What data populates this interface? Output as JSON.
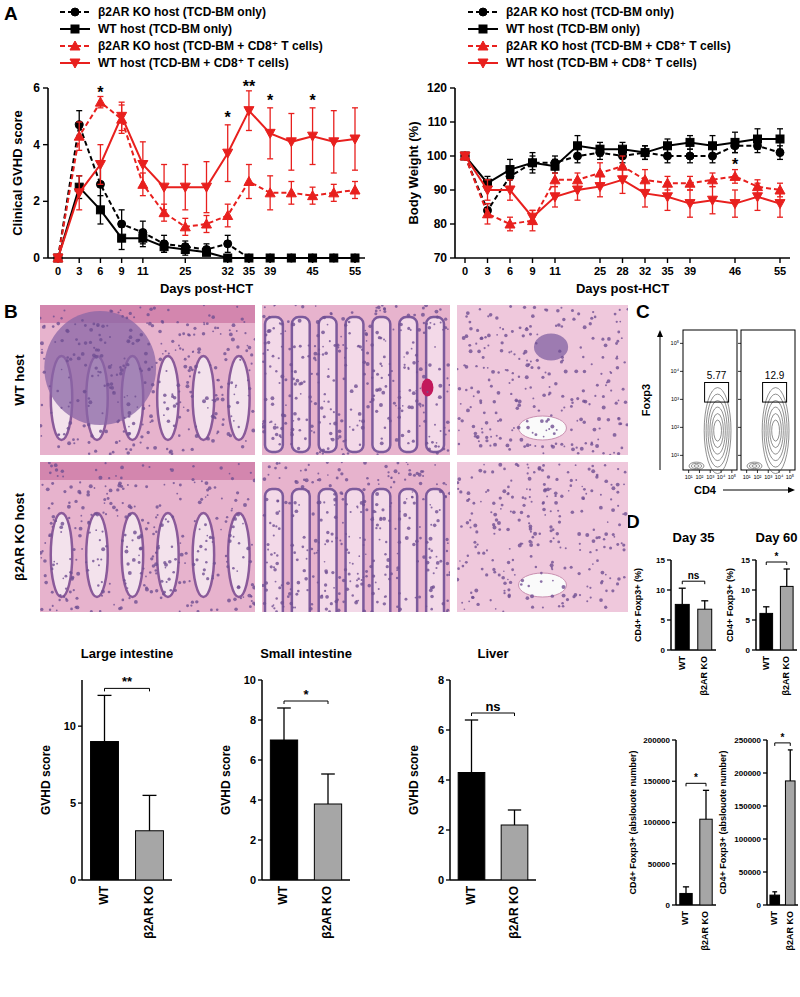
{
  "panel_labels": [
    "A",
    "B",
    "C",
    "D"
  ],
  "histology": {
    "row_labels": [
      "WT host",
      "β2AR KO host"
    ]
  },
  "chart_data": [
    {
      "type": "line",
      "ylabel": "Clinical GVHD score",
      "xlabel": "Days post-HCT",
      "x": [
        "0",
        "3",
        "6",
        "9",
        "11",
        null,
        "25",
        null,
        "32",
        "35",
        "39",
        null,
        "45",
        null,
        "55"
      ],
      "ylim": [
        0,
        6
      ],
      "yticks": [
        0,
        2,
        4,
        6
      ],
      "legend": "top-left",
      "series": [
        {
          "name": "β2AR KO host (TCD-BM only)",
          "color": "#000000",
          "line_style": "dashed",
          "marker": "circle",
          "values": [
            0,
            4.7,
            2.6,
            1.2,
            0.9,
            0.5,
            0.4,
            0.3,
            0.5,
            0,
            0,
            0,
            0,
            0,
            0
          ],
          "errors": [
            0,
            0.5,
            0.8,
            0.5,
            0.4,
            0.3,
            0.2,
            0.2,
            0.3,
            0,
            0,
            0,
            0,
            0,
            0
          ]
        },
        {
          "name": "WT host (TCD-BM only)",
          "color": "#000000",
          "line_style": "solid",
          "marker": "square",
          "values": [
            0,
            2.5,
            1.7,
            0.7,
            0.7,
            0.4,
            0.3,
            0.2,
            0,
            0,
            0,
            0,
            0,
            0,
            0
          ],
          "errors": [
            0,
            0.4,
            0.5,
            0.4,
            0.3,
            0.2,
            0.2,
            0.1,
            0,
            0,
            0,
            0,
            0,
            0,
            0
          ]
        },
        {
          "name": "β2AR KO host (TCD-BM + CD8⁺ T cells)",
          "color": "#e8201e",
          "line_style": "dashed",
          "marker": "triangle",
          "values": [
            0,
            4.3,
            5.5,
            4.9,
            2.6,
            1.6,
            1.1,
            1.2,
            1.5,
            2.7,
            2.3,
            2.3,
            2.2,
            2.3,
            2.4
          ],
          "errors": [
            0,
            0.5,
            0.2,
            0.5,
            0.4,
            0.3,
            0.3,
            0.3,
            0.4,
            0.6,
            0.6,
            0.4,
            0.3,
            0.3,
            0.3
          ]
        },
        {
          "name": "WT host (TCD-BM + CD8⁺ T cells)",
          "color": "#e8201e",
          "line_style": "solid",
          "marker": "triangle-down",
          "values": [
            0,
            2.3,
            3.3,
            5.0,
            3.3,
            2.5,
            2.5,
            2.5,
            3.7,
            5.2,
            4.4,
            4.1,
            4.3,
            4.1,
            4.2
          ],
          "errors": [
            0,
            0.6,
            0.7,
            0.5,
            0.8,
            0.8,
            0.8,
            0.9,
            1.0,
            0.7,
            0.9,
            1.0,
            1.0,
            1.1,
            1.1
          ]
        }
      ],
      "annotations": [
        {
          "text": "*",
          "category": "6",
          "y": 5.8
        },
        {
          "text": "*",
          "category": "32",
          "y": 4.9
        },
        {
          "text": "**",
          "category": "35",
          "y": 6.0
        },
        {
          "text": "*",
          "category": "39",
          "y": 5.5
        },
        {
          "text": "*",
          "category": "45",
          "y": 5.5
        }
      ]
    },
    {
      "type": "line",
      "ylabel": "Body Weight (%)",
      "xlabel": "Days post-HCT",
      "x": [
        "0",
        "3",
        "6",
        "9",
        "11",
        null,
        "25",
        "28",
        "32",
        "35",
        "39",
        null,
        "46",
        null,
        "55"
      ],
      "ylim": [
        70,
        120
      ],
      "yticks": [
        70,
        80,
        90,
        100,
        110,
        120
      ],
      "legend": "top-left",
      "series": [
        {
          "name": "β2AR KO host (TCD-BM only)",
          "color": "#000000",
          "line_style": "dashed",
          "marker": "circle",
          "values": [
            100,
            84,
            94,
            98,
            98,
            100,
            101,
            100,
            101,
            100,
            100,
            100,
            103,
            103,
            101
          ],
          "errors": [
            0,
            2,
            3,
            2,
            2,
            2,
            2,
            2,
            2,
            2,
            2,
            2,
            2,
            2,
            2
          ]
        },
        {
          "name": "WT host (TCD-BM only)",
          "color": "#000000",
          "line_style": "solid",
          "marker": "square",
          "values": [
            100,
            92,
            96,
            98,
            97,
            103,
            102,
            102,
            101,
            103,
            104,
            103,
            104,
            105,
            105
          ],
          "errors": [
            0,
            2,
            3,
            3,
            2,
            3,
            2,
            2,
            2,
            2,
            2,
            3,
            3,
            3,
            3
          ]
        },
        {
          "name": "β2AR KO host (TCD-BM + CD8⁺ T cells)",
          "color": "#e8201e",
          "line_style": "dashed",
          "marker": "triangle",
          "values": [
            100,
            83,
            80,
            81,
            93,
            93,
            95,
            97,
            93,
            92,
            92,
            93,
            94,
            91,
            90
          ],
          "errors": [
            0,
            3,
            2,
            3,
            2,
            2,
            3,
            3,
            3,
            2,
            2,
            2,
            2,
            2,
            2
          ]
        },
        {
          "name": "WT host (TCD-BM + CD8⁺ T cells)",
          "color": "#e8201e",
          "line_style": "solid",
          "marker": "triangle-down",
          "values": [
            100,
            90,
            90,
            82,
            88,
            90,
            91,
            93,
            89,
            88,
            86,
            87,
            86,
            88,
            86
          ],
          "errors": [
            0,
            3,
            3,
            2,
            3,
            3,
            3,
            4,
            4,
            4,
            4,
            4,
            4,
            4,
            4
          ]
        }
      ],
      "annotations": [
        {
          "text": "*",
          "category": "46",
          "y": 97
        }
      ]
    },
    {
      "type": "bar",
      "title": "Large intestine",
      "ylabel": "GVHD score",
      "categories": [
        "WT",
        "β2AR KO"
      ],
      "values": [
        9,
        3.2
      ],
      "errors": [
        3,
        2.3
      ],
      "colors": [
        "#000000",
        "#a6a6a6"
      ],
      "ylim": [
        0,
        13
      ],
      "yticks": [
        0,
        5,
        10
      ],
      "annotations": [
        {
          "text": "**"
        }
      ]
    },
    {
      "type": "bar",
      "title": "Small intestine",
      "ylabel": "GVHD score",
      "categories": [
        "WT",
        "β2AR KO"
      ],
      "values": [
        7,
        3.8
      ],
      "errors": [
        1.6,
        1.5
      ],
      "colors": [
        "#000000",
        "#a6a6a6"
      ],
      "ylim": [
        0,
        10
      ],
      "yticks": [
        0,
        2,
        4,
        6,
        8,
        10
      ],
      "annotations": [
        {
          "text": "*"
        }
      ]
    },
    {
      "type": "bar",
      "title": "Liver",
      "ylabel": "GVHD score",
      "categories": [
        "WT",
        "β2AR KO"
      ],
      "values": [
        4.3,
        2.2
      ],
      "errors": [
        2.1,
        0.6
      ],
      "colors": [
        "#000000",
        "#a6a6a6"
      ],
      "ylim": [
        0,
        8
      ],
      "yticks": [
        0,
        2,
        4,
        6,
        8
      ],
      "annotations": [
        {
          "text": "ns"
        }
      ]
    },
    {
      "type": "contour",
      "xlabel": "CD4",
      "ylabel": "Foxp3",
      "log": true,
      "xlim": [
        3,
        300000
      ],
      "ylim": [
        3,
        300000
      ],
      "xticks": [
        {
          "value": 10,
          "label": "10¹"
        },
        {
          "value": 100,
          "label": "10²"
        },
        {
          "value": 1000,
          "label": "10³"
        },
        {
          "value": 10000,
          "label": "10⁴"
        },
        {
          "value": 100000,
          "label": "10⁵"
        }
      ],
      "yticks": [
        {
          "value": 10,
          "label": "10¹"
        },
        {
          "value": 100,
          "label": "10²"
        },
        {
          "value": 1000,
          "label": "10³"
        },
        {
          "value": 10000,
          "label": "10⁴"
        },
        {
          "value": 100000,
          "label": "10⁵"
        }
      ],
      "gates": [
        {
          "value": 5.77,
          "x": [
            300,
            50000
          ],
          "y": [
            800,
            4000
          ]
        },
        {
          "value": 12.9,
          "x": [
            300,
            50000
          ],
          "y": [
            800,
            4000
          ]
        }
      ]
    },
    {
      "type": "bar",
      "title": "Day 35",
      "ylabel": "CD4+ Foxp3+ (%)",
      "categories": [
        "WT",
        "β2AR KO"
      ],
      "values": [
        7.6,
        6.8
      ],
      "errors": [
        2.7,
        1.4
      ],
      "colors": [
        "#000000",
        "#a6a6a6"
      ],
      "ylim": [
        0,
        15
      ],
      "yticks": [
        0,
        5,
        10,
        15
      ],
      "annotations": [
        {
          "text": "ns"
        }
      ]
    },
    {
      "type": "bar",
      "title": "Day 60",
      "ylabel": "CD4+ Foxp3+ (%)",
      "categories": [
        "WT",
        "β2AR KO"
      ],
      "values": [
        6.1,
        10.6
      ],
      "errors": [
        1.1,
        2.9
      ],
      "colors": [
        "#000000",
        "#a6a6a6"
      ],
      "ylim": [
        0,
        15
      ],
      "yticks": [
        0,
        5,
        10,
        15
      ],
      "annotations": [
        {
          "text": "*"
        }
      ]
    },
    {
      "type": "bar",
      "ylabel": "CD4+ Foxp3+ (abslouote number)",
      "categories": [
        "WT",
        "β2AR KO"
      ],
      "values": [
        14000,
        104000
      ],
      "errors": [
        8000,
        35000
      ],
      "colors": [
        "#000000",
        "#a6a6a6"
      ],
      "ylim": [
        0,
        200000
      ],
      "yticks": [
        0,
        50000,
        100000,
        150000,
        200000
      ],
      "annotations": [
        {
          "text": "*"
        }
      ]
    },
    {
      "type": "bar",
      "ylabel": "CD4+ Foxp3+ (abslouote number)",
      "categories": [
        "WT",
        "β2AR KO"
      ],
      "values": [
        15000,
        188000
      ],
      "errors": [
        5000,
        47000
      ],
      "colors": [
        "#000000",
        "#a6a6a6"
      ],
      "ylim": [
        0,
        250000
      ],
      "yticks": [
        0,
        50000,
        100000,
        150000,
        200000,
        250000
      ],
      "annotations": [
        {
          "text": "*"
        }
      ]
    }
  ]
}
